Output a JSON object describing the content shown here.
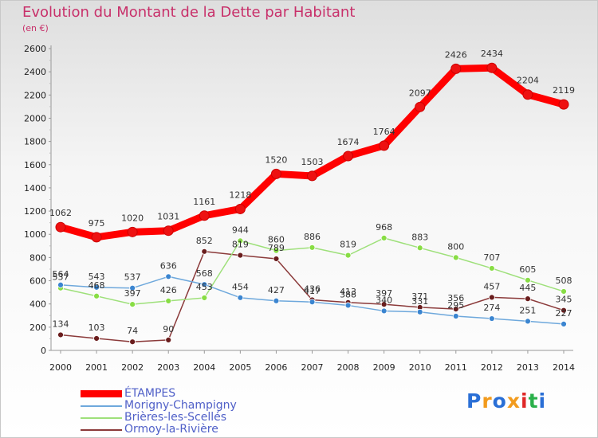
{
  "header": {
    "title": "Evolution du Montant de la Dette par Habitant",
    "subtitle": "(en €)"
  },
  "chart_data": {
    "type": "line",
    "title": "Evolution du Montant de la Dette par Habitant",
    "subtitle": "(en €)",
    "xlabel": "",
    "ylabel": "",
    "x": [
      "2000",
      "2001",
      "2002",
      "2003",
      "2004",
      "2005",
      "2006",
      "2007",
      "2008",
      "2009",
      "2010",
      "2011",
      "2012",
      "2013",
      "2014"
    ],
    "ylim": [
      0,
      2600
    ],
    "y_ticks": [
      0,
      200,
      400,
      600,
      800,
      1000,
      1200,
      1400,
      1600,
      1800,
      2000,
      2200,
      2400,
      2600
    ],
    "grid": false,
    "legend_position": "bottom-left",
    "series": [
      {
        "name": "ÉTAMPES",
        "color": "#ff0000",
        "marker_color": "#ee1111",
        "values": [
          1062,
          975,
          1020,
          1031,
          1161,
          1218,
          1520,
          1503,
          1674,
          1764,
          2097,
          2426,
          2434,
          2204,
          2119
        ]
      },
      {
        "name": "Morigny-Champigny",
        "color": "#6ea8dc",
        "marker_color": "#3b85d0",
        "values": [
          564,
          543,
          537,
          636,
          568,
          454,
          427,
          417,
          388,
          340,
          331,
          295,
          274,
          251,
          227
        ]
      },
      {
        "name": "Brières-les-Scellés",
        "color": "#9ee07a",
        "marker_color": "#88dd44",
        "values": [
          537,
          468,
          397,
          426,
          453,
          944,
          860,
          886,
          819,
          968,
          883,
          800,
          707,
          605,
          508
        ]
      },
      {
        "name": "Ormoy-la-Rivière",
        "color": "#8b3a3a",
        "marker_color": "#6a1d1d",
        "values": [
          134,
          103,
          74,
          90,
          852,
          819,
          789,
          436,
          413,
          397,
          371,
          356,
          457,
          445,
          345
        ]
      }
    ]
  },
  "logo": {
    "text": "Proxiti",
    "letter_colors": [
      "#2a6fd6",
      "#f29b1d",
      "#2a6fd6",
      "#f29b1d",
      "#e02828",
      "#2ab04a",
      "#2a6fd6"
    ]
  }
}
